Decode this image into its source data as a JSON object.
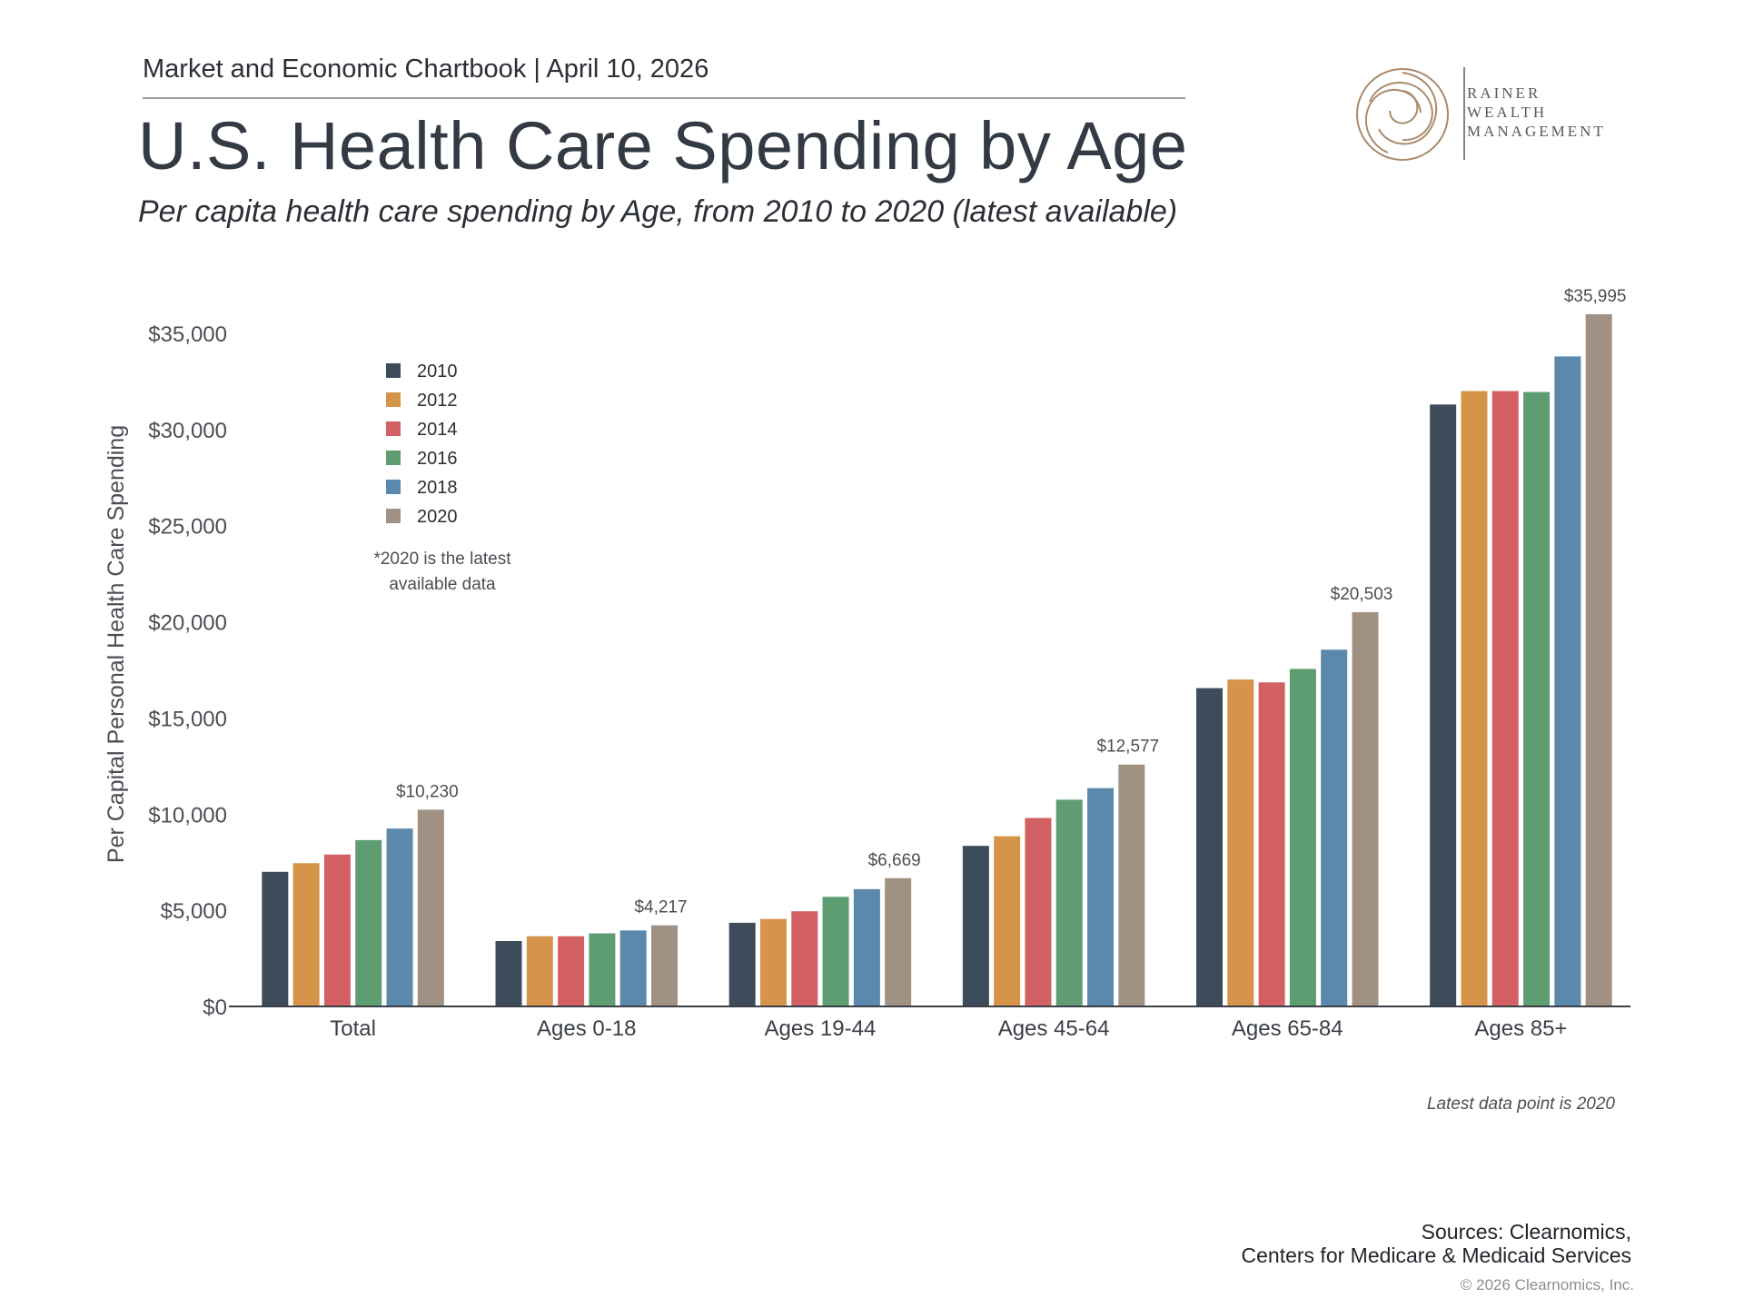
{
  "header": {
    "chartbook": "Market and Economic Chartbook | April 10, 2026",
    "title": "U.S. Health Care Spending by Age",
    "subtitle": "Per capita health care spending by Age, from 2010 to 2020 (latest available)"
  },
  "logo": {
    "line1": "RAINER",
    "line2": "WEALTH",
    "line3": "MANAGEMENT",
    "color": "#a98b6d"
  },
  "chart_data": {
    "type": "bar",
    "title": "U.S. Health Care Spending by Age",
    "subtitle": "Per capita health care spending by Age, from 2010 to 2020 (latest available)",
    "ylabel": "Per Capital Personal Health Care Spending",
    "xlabel": "",
    "ylim": [
      0,
      35000
    ],
    "yticks": [
      0,
      5000,
      10000,
      15000,
      20000,
      25000,
      30000,
      35000
    ],
    "ytick_labels": [
      "$0",
      "$5,000",
      "$10,000",
      "$15,000",
      "$20,000",
      "$25,000",
      "$30,000",
      "$35,000"
    ],
    "grid": false,
    "legend_position": "top-left",
    "categories": [
      "Total",
      "Ages 0-18",
      "Ages 19-44",
      "Ages 45-64",
      "Ages 65-84",
      "Ages 85+"
    ],
    "series": [
      {
        "name": "2010",
        "color": "#3d4b5a",
        "values": [
          7000,
          3400,
          4350,
          8350,
          16550,
          31300
        ]
      },
      {
        "name": "2012",
        "color": "#d6934a",
        "values": [
          7450,
          3650,
          4550,
          8850,
          17000,
          32000
        ]
      },
      {
        "name": "2014",
        "color": "#d36163",
        "values": [
          7900,
          3650,
          4950,
          9800,
          16850,
          32000
        ]
      },
      {
        "name": "2016",
        "color": "#5e9c72",
        "values": [
          8650,
          3800,
          5700,
          10750,
          17550,
          31950
        ]
      },
      {
        "name": "2018",
        "color": "#5b88ad",
        "values": [
          9250,
          3950,
          6100,
          11350,
          18550,
          33800
        ]
      },
      {
        "name": "2020",
        "color": "#a09183",
        "values": [
          10230,
          4217,
          6669,
          12577,
          20503,
          35995
        ]
      }
    ],
    "data_labels": [
      "$10,230",
      "$4,217",
      "$6,669",
      "$12,577",
      "$20,503",
      "$35,995"
    ],
    "annotation": "*2020 is the latest\navailable data",
    "note": "Latest data point is 2020"
  },
  "footer": {
    "sources_line1": "Sources: Clearnomics,",
    "sources_line2": "Centers for Medicare & Medicaid Services",
    "copyright": "© 2026 Clearnomics, Inc."
  }
}
